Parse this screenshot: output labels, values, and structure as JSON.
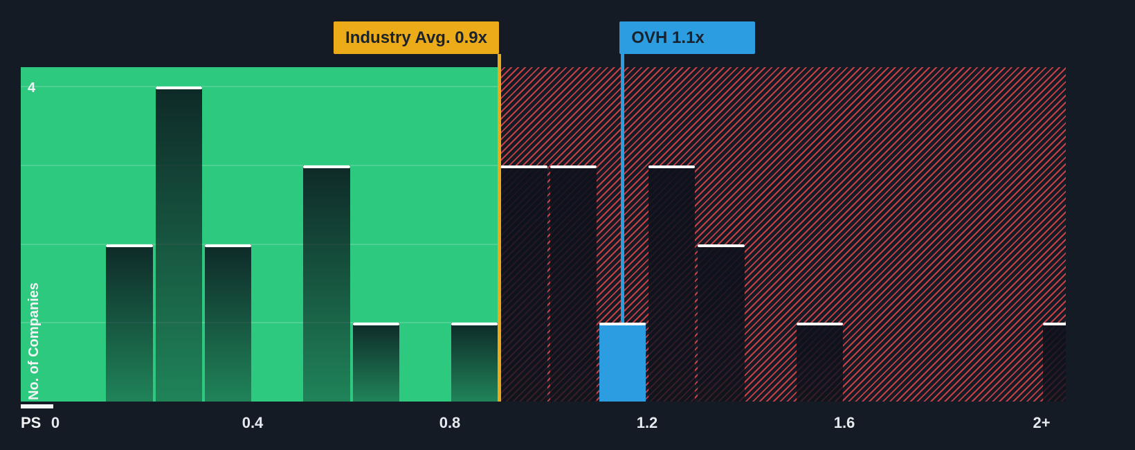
{
  "colors": {
    "background": "#151b24",
    "below_avg_green": "#2dc97e",
    "hatch_red": "#e5484d",
    "industry_amber": "#ecab18",
    "company_blue": "#2d9de2",
    "callout_text": "#1a222c",
    "bar_cap_white": "#ffffff",
    "axis_text": "#e6eaee"
  },
  "chart_data": {
    "type": "bar",
    "subtype": "histogram",
    "title": "",
    "xlabel": "PS",
    "ylabel": "No. of Companies",
    "y_axis_top_label": "4",
    "ylim": [
      0,
      4.25
    ],
    "y_gridlines": [
      1,
      2,
      3,
      4
    ],
    "bin_width": 0.1,
    "x_ticks": [
      {
        "value": 0,
        "label": "0"
      },
      {
        "value": 0.4,
        "label": "0.4"
      },
      {
        "value": 0.8,
        "label": "0.8"
      },
      {
        "value": 1.2,
        "label": "1.2"
      },
      {
        "value": 1.6,
        "label": "1.6"
      },
      {
        "value": 2.0,
        "label": "2+"
      }
    ],
    "bars": [
      {
        "bin_start": 0.1,
        "count": 2
      },
      {
        "bin_start": 0.2,
        "count": 4
      },
      {
        "bin_start": 0.3,
        "count": 2
      },
      {
        "bin_start": 0.5,
        "count": 3
      },
      {
        "bin_start": 0.6,
        "count": 1
      },
      {
        "bin_start": 0.8,
        "count": 1
      },
      {
        "bin_start": 0.9,
        "count": 3
      },
      {
        "bin_start": 1.0,
        "count": 3
      },
      {
        "bin_start": 1.1,
        "count": 1,
        "highlight": "company"
      },
      {
        "bin_start": 1.2,
        "count": 3
      },
      {
        "bin_start": 1.3,
        "count": 2
      },
      {
        "bin_start": 1.5,
        "count": 1
      },
      {
        "bin_start": 2.0,
        "count": 1
      }
    ],
    "markers": {
      "industry_avg": {
        "label": "Industry Avg. 0.9x",
        "value": 0.9
      },
      "company": {
        "label": "OVH 1.1x",
        "value": 1.1
      }
    },
    "zones": {
      "below_avg": "green solid",
      "above_avg": "red diagonal hatch"
    },
    "legend_position": "none",
    "grid": "horizontal, faint, below-average zone only"
  }
}
